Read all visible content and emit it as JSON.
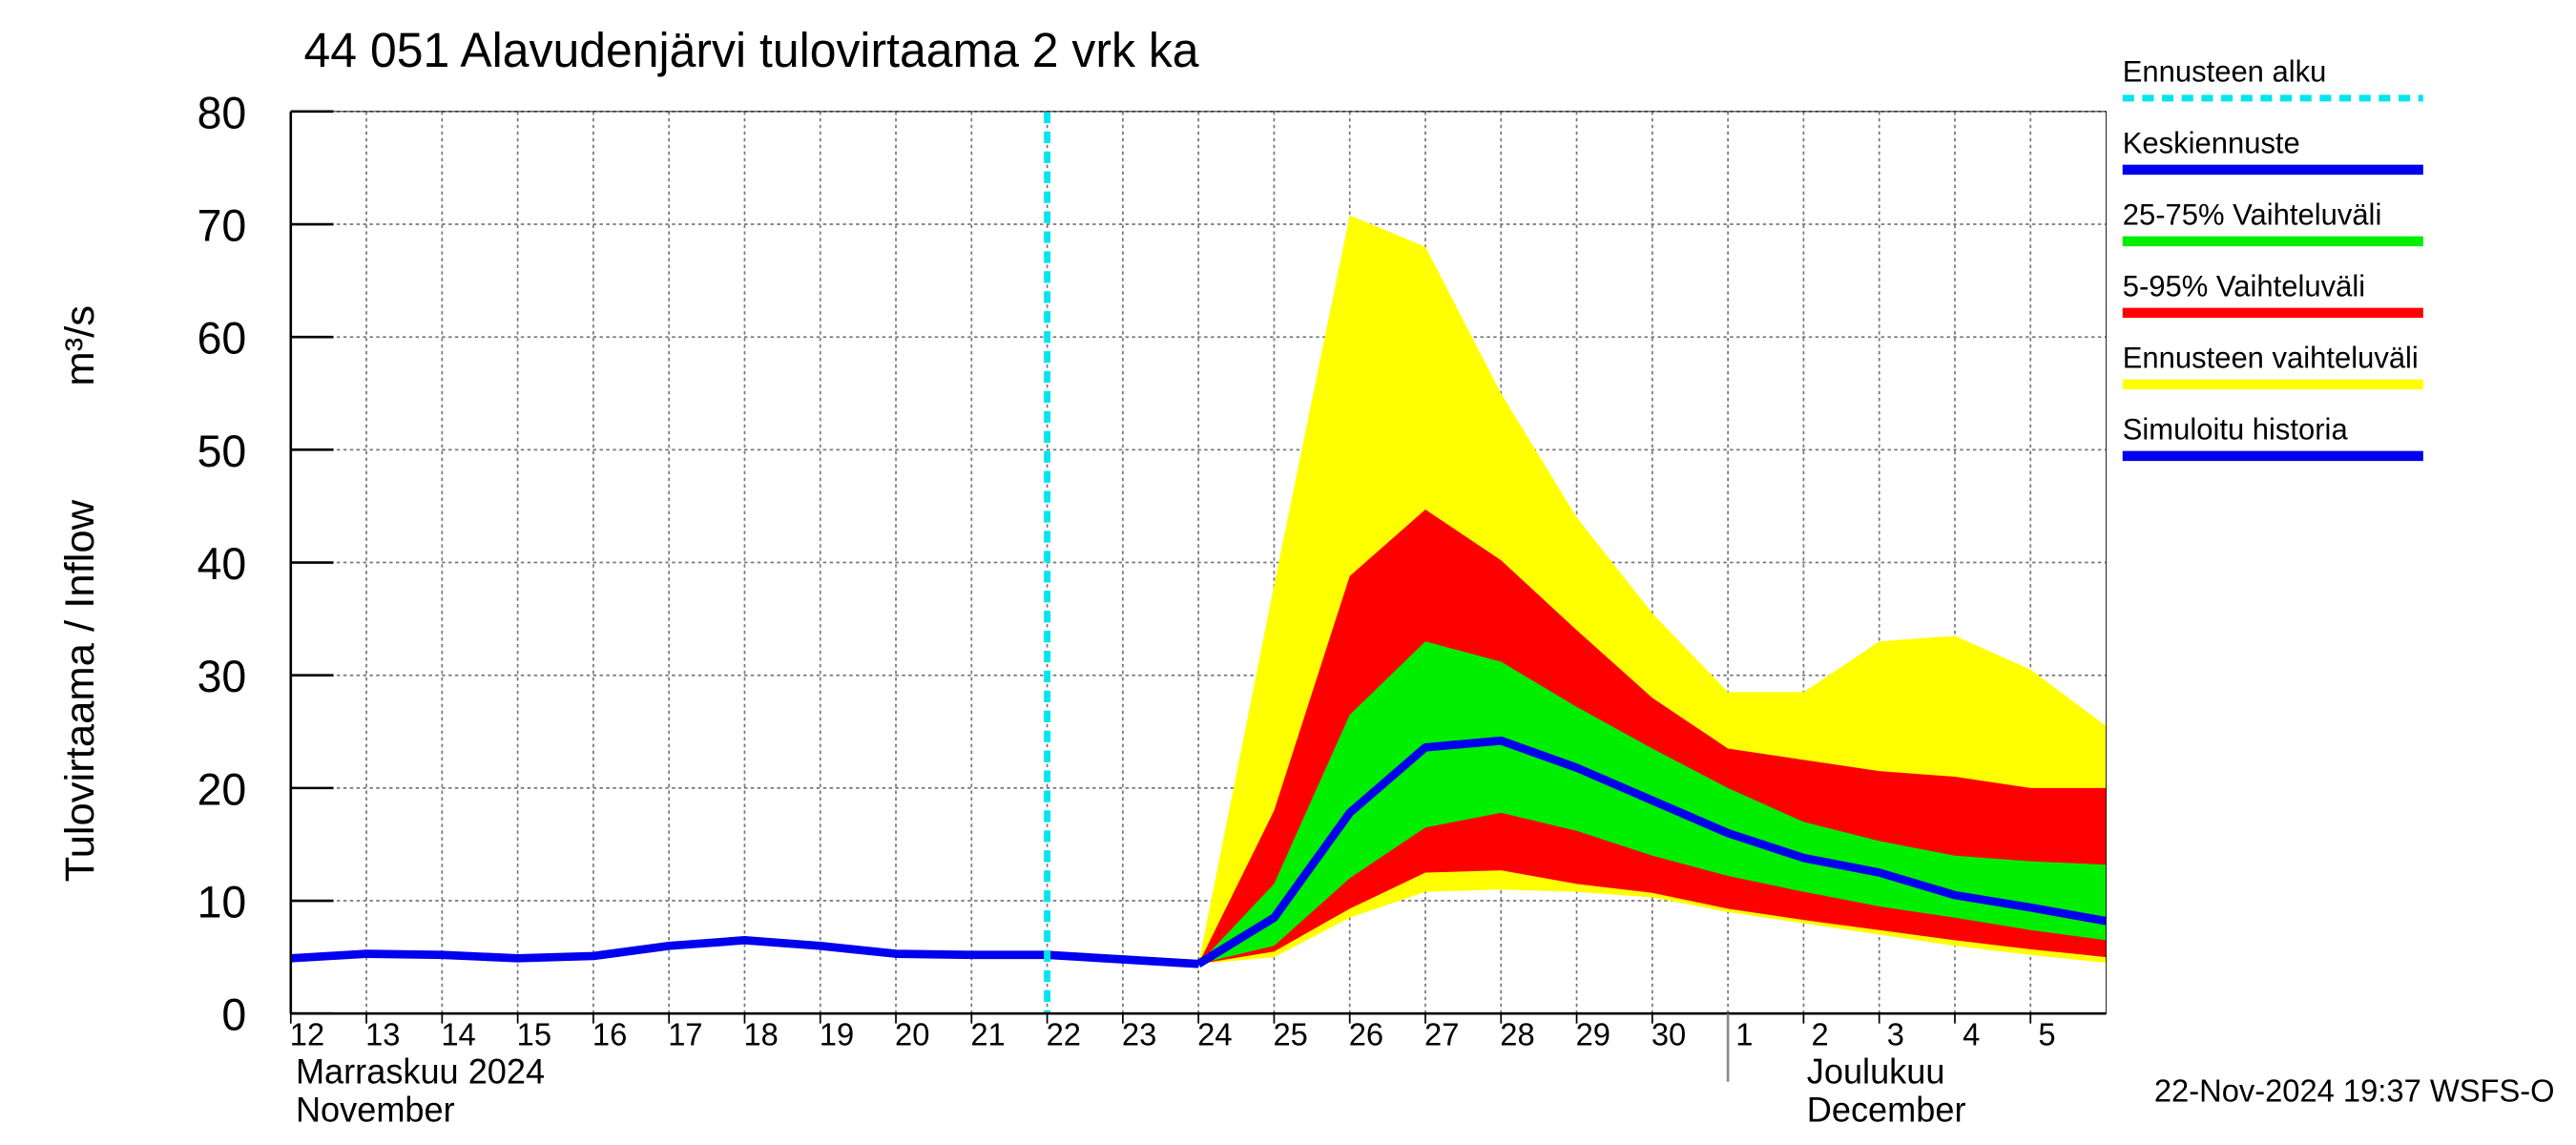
{
  "chart_data": {
    "type": "line",
    "title": "44 051 Alavudenjärvi tulovirtaama 2 vrk ka",
    "y_label": "Tulovirtaama / Inflow",
    "y_unit": "m³/s",
    "month_labels": [
      {
        "x": "2024-11-12",
        "lines": [
          "Marraskuu 2024",
          "November"
        ]
      },
      {
        "x": "2024-12-01",
        "lines": [
          "Joulukuu",
          "December"
        ]
      }
    ],
    "footer": "22-Nov-2024 19:37 WSFS-O",
    "x": [
      "2024-11-12",
      "2024-11-13",
      "2024-11-14",
      "2024-11-15",
      "2024-11-16",
      "2024-11-17",
      "2024-11-18",
      "2024-11-19",
      "2024-11-20",
      "2024-11-21",
      "2024-11-22",
      "2024-11-23",
      "2024-11-24",
      "2024-11-25",
      "2024-11-26",
      "2024-11-27",
      "2024-11-28",
      "2024-11-29",
      "2024-11-30",
      "2024-12-01",
      "2024-12-02",
      "2024-12-03",
      "2024-12-04",
      "2024-12-05",
      "2024-12-06"
    ],
    "xlim": [
      "2024-11-12",
      "2024-12-06"
    ],
    "xticks": [
      {
        "value": "2024-11-12",
        "label": "12"
      },
      {
        "value": "2024-11-13",
        "label": "13"
      },
      {
        "value": "2024-11-14",
        "label": "14"
      },
      {
        "value": "2024-11-15",
        "label": "15"
      },
      {
        "value": "2024-11-16",
        "label": "16"
      },
      {
        "value": "2024-11-17",
        "label": "17"
      },
      {
        "value": "2024-11-18",
        "label": "18"
      },
      {
        "value": "2024-11-19",
        "label": "19"
      },
      {
        "value": "2024-11-20",
        "label": "20"
      },
      {
        "value": "2024-11-21",
        "label": "21"
      },
      {
        "value": "2024-11-22",
        "label": "22"
      },
      {
        "value": "2024-11-23",
        "label": "23"
      },
      {
        "value": "2024-11-24",
        "label": "24"
      },
      {
        "value": "2024-11-25",
        "label": "25"
      },
      {
        "value": "2024-11-26",
        "label": "26"
      },
      {
        "value": "2024-11-27",
        "label": "27"
      },
      {
        "value": "2024-11-28",
        "label": "28"
      },
      {
        "value": "2024-11-29",
        "label": "29"
      },
      {
        "value": "2024-11-30",
        "label": "30"
      },
      {
        "value": "2024-12-01",
        "label": "1"
      },
      {
        "value": "2024-12-02",
        "label": "2"
      },
      {
        "value": "2024-12-03",
        "label": "3"
      },
      {
        "value": "2024-12-04",
        "label": "4"
      },
      {
        "value": "2024-12-05",
        "label": "5"
      }
    ],
    "ylim": [
      0,
      80
    ],
    "yticks": [
      0,
      10,
      20,
      30,
      40,
      50,
      60,
      70,
      80
    ],
    "grid": true,
    "forecast_start": {
      "name": "Ennusteen alku",
      "color": "#00e5ee",
      "x": "2024-11-22"
    },
    "series": [
      {
        "name": "Keskiennuste",
        "color": "#0000ee",
        "style": "line",
        "values": [
          null,
          null,
          null,
          null,
          null,
          null,
          null,
          null,
          null,
          null,
          null,
          null,
          4.4,
          8.5,
          17.8,
          23.6,
          24.2,
          21.8,
          18.9,
          16.0,
          13.8,
          12.5,
          10.5,
          9.4,
          8.2
        ]
      },
      {
        "name": "25-75% Vaihteluväli",
        "color": "#00ee00",
        "style": "band",
        "values": [
          null,
          null,
          null,
          null,
          null,
          null,
          null,
          null,
          null,
          null,
          null,
          null,
          4.4,
          11.5,
          26.5,
          33.0,
          31.2,
          27.2,
          23.5,
          20.0,
          17.0,
          15.3,
          14.0,
          13.5,
          13.2
        ],
        "lower": [
          null,
          null,
          null,
          null,
          null,
          null,
          null,
          null,
          null,
          null,
          null,
          null,
          4.4,
          6.0,
          12.0,
          16.5,
          17.8,
          16.2,
          14.0,
          12.2,
          10.8,
          9.5,
          8.5,
          7.4,
          6.5
        ]
      },
      {
        "name": "5-95% Vaihteluväli",
        "color": "#ff0000",
        "style": "band",
        "values": [
          null,
          null,
          null,
          null,
          null,
          null,
          null,
          null,
          null,
          null,
          null,
          null,
          4.4,
          18.0,
          38.8,
          44.7,
          40.2,
          34.0,
          28.0,
          23.5,
          22.5,
          21.5,
          21.0,
          20.0,
          20.0
        ],
        "lower": [
          null,
          null,
          null,
          null,
          null,
          null,
          null,
          null,
          null,
          null,
          null,
          null,
          4.4,
          5.5,
          9.3,
          12.5,
          12.7,
          11.5,
          10.7,
          9.3,
          8.3,
          7.4,
          6.5,
          5.7,
          5.0
        ]
      },
      {
        "name": "Ennusteen vaihteluväli",
        "color": "#ffff00",
        "style": "band",
        "values": [
          null,
          null,
          null,
          null,
          null,
          null,
          null,
          null,
          null,
          null,
          null,
          null,
          4.4,
          38.0,
          70.8,
          68.0,
          55.0,
          44.0,
          35.5,
          28.5,
          28.5,
          33.0,
          33.5,
          30.5,
          25.5
        ],
        "lower": [
          null,
          null,
          null,
          null,
          null,
          null,
          null,
          null,
          null,
          null,
          null,
          null,
          4.4,
          5.0,
          8.5,
          10.8,
          11.0,
          10.8,
          10.3,
          9.0,
          8.0,
          7.0,
          6.0,
          5.2,
          4.5
        ]
      },
      {
        "name": "Simuloitu historia",
        "color": "#0000ee",
        "style": "line",
        "values": [
          4.9,
          5.3,
          5.2,
          4.9,
          5.1,
          6.0,
          6.5,
          6.0,
          5.3,
          5.2,
          5.2,
          4.8,
          4.4,
          null,
          null,
          null,
          null,
          null,
          null,
          null,
          null,
          null,
          null,
          null,
          null
        ]
      }
    ]
  }
}
